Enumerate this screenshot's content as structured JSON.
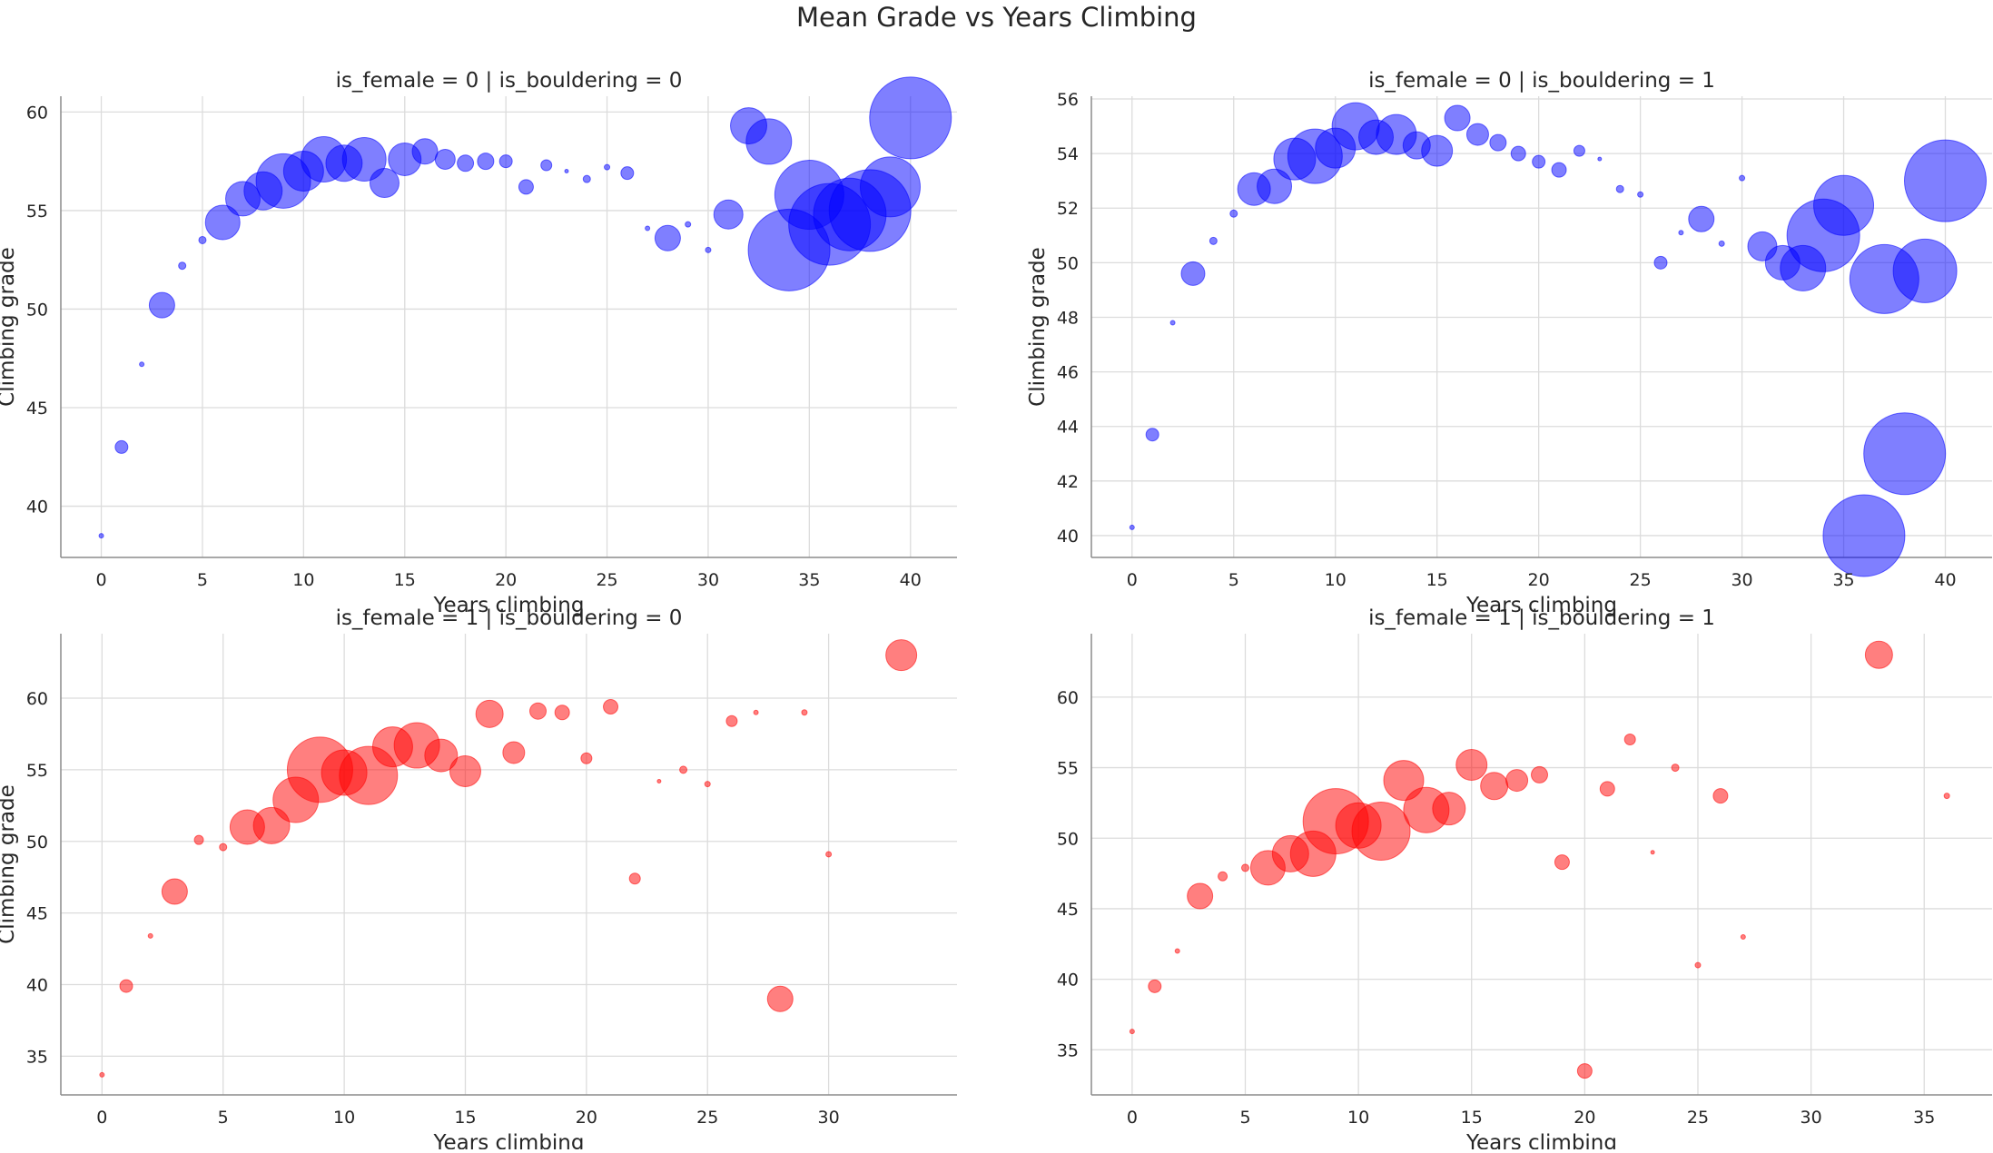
{
  "figure": {
    "title": "Mean Grade vs Years Climbing"
  },
  "chart_data": [
    {
      "type": "scatter",
      "title": "is_female = 0 | is_bouldering = 0",
      "xlabel": "Years climbing",
      "ylabel": "Climbing grade",
      "xlim": [
        -2,
        42.3
      ],
      "ylim": [
        37.4,
        60.8
      ],
      "xticks": [
        0,
        5,
        10,
        15,
        20,
        25,
        30,
        35,
        40
      ],
      "yticks": [
        40,
        45,
        50,
        55,
        60
      ],
      "color": "#0000ff",
      "points": [
        {
          "x": 0,
          "y": 38.5,
          "r": 2.5
        },
        {
          "x": 1,
          "y": 43.0,
          "r": 7
        },
        {
          "x": 2,
          "y": 47.2,
          "r": 2.5
        },
        {
          "x": 3,
          "y": 50.2,
          "r": 14
        },
        {
          "x": 4,
          "y": 52.2,
          "r": 4
        },
        {
          "x": 5,
          "y": 53.5,
          "r": 4
        },
        {
          "x": 6,
          "y": 54.4,
          "r": 19
        },
        {
          "x": 7,
          "y": 55.6,
          "r": 19
        },
        {
          "x": 8,
          "y": 56.0,
          "r": 21
        },
        {
          "x": 9,
          "y": 56.5,
          "r": 30
        },
        {
          "x": 10,
          "y": 57.0,
          "r": 22
        },
        {
          "x": 11,
          "y": 57.6,
          "r": 25
        },
        {
          "x": 12,
          "y": 57.4,
          "r": 20
        },
        {
          "x": 13,
          "y": 57.6,
          "r": 24
        },
        {
          "x": 14,
          "y": 56.4,
          "r": 16
        },
        {
          "x": 15,
          "y": 57.6,
          "r": 18
        },
        {
          "x": 16,
          "y": 58.0,
          "r": 14
        },
        {
          "x": 17,
          "y": 57.6,
          "r": 11
        },
        {
          "x": 18,
          "y": 57.4,
          "r": 9
        },
        {
          "x": 19,
          "y": 57.5,
          "r": 9
        },
        {
          "x": 20,
          "y": 57.5,
          "r": 7
        },
        {
          "x": 21,
          "y": 56.2,
          "r": 8
        },
        {
          "x": 22,
          "y": 57.3,
          "r": 6
        },
        {
          "x": 23,
          "y": 57.0,
          "r": 2
        },
        {
          "x": 24,
          "y": 56.6,
          "r": 4
        },
        {
          "x": 25,
          "y": 57.2,
          "r": 3
        },
        {
          "x": 26,
          "y": 56.9,
          "r": 7
        },
        {
          "x": 27,
          "y": 54.1,
          "r": 2.5
        },
        {
          "x": 28,
          "y": 53.6,
          "r": 14
        },
        {
          "x": 29,
          "y": 54.3,
          "r": 3
        },
        {
          "x": 30,
          "y": 53.0,
          "r": 3
        },
        {
          "x": 31,
          "y": 54.8,
          "r": 16
        },
        {
          "x": 32,
          "y": 59.3,
          "r": 20
        },
        {
          "x": 33,
          "y": 58.5,
          "r": 25
        },
        {
          "x": 34,
          "y": 53.0,
          "r": 45
        },
        {
          "x": 35,
          "y": 55.8,
          "r": 38
        },
        {
          "x": 36,
          "y": 54.3,
          "r": 45
        },
        {
          "x": 37,
          "y": 54.8,
          "r": 40
        },
        {
          "x": 38,
          "y": 55.0,
          "r": 45
        },
        {
          "x": 39,
          "y": 56.2,
          "r": 33
        },
        {
          "x": 40,
          "y": 59.7,
          "r": 45
        }
      ]
    },
    {
      "type": "scatter",
      "title": "is_female = 0 | is_bouldering = 1",
      "xlabel": "Years climbing",
      "ylabel": "Climbing grade",
      "xlim": [
        -2,
        42.3
      ],
      "ylim": [
        39.2,
        56.1
      ],
      "xticks": [
        0,
        5,
        10,
        15,
        20,
        25,
        30,
        35,
        40
      ],
      "yticks": [
        40,
        42,
        44,
        46,
        48,
        50,
        52,
        54,
        56
      ],
      "color": "#0000ff",
      "points": [
        {
          "x": 0,
          "y": 40.3,
          "r": 2.5
        },
        {
          "x": 1,
          "y": 43.7,
          "r": 7
        },
        {
          "x": 2,
          "y": 47.8,
          "r": 2.5
        },
        {
          "x": 3,
          "y": 49.6,
          "r": 13
        },
        {
          "x": 4,
          "y": 50.8,
          "r": 4
        },
        {
          "x": 5,
          "y": 51.8,
          "r": 4
        },
        {
          "x": 6,
          "y": 52.7,
          "r": 18
        },
        {
          "x": 7,
          "y": 52.8,
          "r": 19
        },
        {
          "x": 8,
          "y": 53.8,
          "r": 23
        },
        {
          "x": 9,
          "y": 53.9,
          "r": 30
        },
        {
          "x": 10,
          "y": 54.2,
          "r": 22
        },
        {
          "x": 11,
          "y": 55.0,
          "r": 26
        },
        {
          "x": 12,
          "y": 54.6,
          "r": 19
        },
        {
          "x": 13,
          "y": 54.7,
          "r": 22
        },
        {
          "x": 14,
          "y": 54.3,
          "r": 15
        },
        {
          "x": 15,
          "y": 54.1,
          "r": 17
        },
        {
          "x": 16,
          "y": 55.3,
          "r": 14
        },
        {
          "x": 17,
          "y": 54.7,
          "r": 12
        },
        {
          "x": 18,
          "y": 54.4,
          "r": 9
        },
        {
          "x": 19,
          "y": 54.0,
          "r": 8
        },
        {
          "x": 20,
          "y": 53.7,
          "r": 7
        },
        {
          "x": 21,
          "y": 53.4,
          "r": 8
        },
        {
          "x": 22,
          "y": 54.1,
          "r": 6
        },
        {
          "x": 23,
          "y": 53.8,
          "r": 2
        },
        {
          "x": 24,
          "y": 52.7,
          "r": 4
        },
        {
          "x": 25,
          "y": 52.5,
          "r": 3
        },
        {
          "x": 26,
          "y": 50.0,
          "r": 7
        },
        {
          "x": 27,
          "y": 51.1,
          "r": 2.5
        },
        {
          "x": 28,
          "y": 51.6,
          "r": 14
        },
        {
          "x": 29,
          "y": 50.7,
          "r": 3
        },
        {
          "x": 30,
          "y": 53.1,
          "r": 3
        },
        {
          "x": 31,
          "y": 50.6,
          "r": 16
        },
        {
          "x": 32,
          "y": 50.0,
          "r": 19
        },
        {
          "x": 33,
          "y": 49.8,
          "r": 25
        },
        {
          "x": 34,
          "y": 51.0,
          "r": 40
        },
        {
          "x": 35,
          "y": 52.1,
          "r": 33
        },
        {
          "x": 36,
          "y": 40.0,
          "r": 45
        },
        {
          "x": 37,
          "y": 49.4,
          "r": 38
        },
        {
          "x": 38,
          "y": 43.0,
          "r": 45
        },
        {
          "x": 39,
          "y": 49.7,
          "r": 35
        },
        {
          "x": 40,
          "y": 53.0,
          "r": 45
        }
      ]
    },
    {
      "type": "scatter",
      "title": "is_female = 1 | is_bouldering = 0",
      "xlabel": "Years climbing",
      "ylabel": "Climbing grade",
      "xlim": [
        -1.7,
        35.3
      ],
      "ylim": [
        32.3,
        64.5
      ],
      "xticks": [
        0,
        5,
        10,
        15,
        20,
        25,
        30
      ],
      "yticks": [
        35,
        40,
        45,
        50,
        55,
        60
      ],
      "color": "#ff0000",
      "points": [
        {
          "x": 0,
          "y": 33.7,
          "r": 2.5
        },
        {
          "x": 1,
          "y": 39.9,
          "r": 7
        },
        {
          "x": 2,
          "y": 43.4,
          "r": 2.5
        },
        {
          "x": 3,
          "y": 46.5,
          "r": 14
        },
        {
          "x": 4,
          "y": 50.1,
          "r": 5
        },
        {
          "x": 5,
          "y": 49.6,
          "r": 4
        },
        {
          "x": 6,
          "y": 51.0,
          "r": 19
        },
        {
          "x": 7,
          "y": 51.1,
          "r": 20
        },
        {
          "x": 8,
          "y": 52.9,
          "r": 25
        },
        {
          "x": 9,
          "y": 55.0,
          "r": 36
        },
        {
          "x": 10,
          "y": 54.8,
          "r": 25
        },
        {
          "x": 11,
          "y": 54.6,
          "r": 32
        },
        {
          "x": 12,
          "y": 56.6,
          "r": 22
        },
        {
          "x": 13,
          "y": 56.7,
          "r": 25
        },
        {
          "x": 14,
          "y": 56.0,
          "r": 18
        },
        {
          "x": 15,
          "y": 54.9,
          "r": 17
        },
        {
          "x": 16,
          "y": 58.9,
          "r": 15
        },
        {
          "x": 17,
          "y": 56.2,
          "r": 12
        },
        {
          "x": 18,
          "y": 59.1,
          "r": 9
        },
        {
          "x": 19,
          "y": 59.0,
          "r": 8
        },
        {
          "x": 20,
          "y": 55.8,
          "r": 6
        },
        {
          "x": 21,
          "y": 59.4,
          "r": 8
        },
        {
          "x": 22,
          "y": 47.4,
          "r": 6
        },
        {
          "x": 23,
          "y": 54.2,
          "r": 2
        },
        {
          "x": 24,
          "y": 55.0,
          "r": 4
        },
        {
          "x": 25,
          "y": 54.0,
          "r": 3
        },
        {
          "x": 26,
          "y": 58.4,
          "r": 6
        },
        {
          "x": 27,
          "y": 59.0,
          "r": 2.5
        },
        {
          "x": 28,
          "y": 39.0,
          "r": 14
        },
        {
          "x": 29,
          "y": 59.0,
          "r": 3
        },
        {
          "x": 30,
          "y": 49.1,
          "r": 3
        },
        {
          "x": 33,
          "y": 63.0,
          "r": 17
        }
      ]
    },
    {
      "type": "scatter",
      "title": "is_female = 1 | is_bouldering = 1",
      "xlabel": "Years climbing",
      "ylabel": "",
      "xlim": [
        -1.8,
        38.0
      ],
      "ylim": [
        31.8,
        64.5
      ],
      "xticks": [
        0,
        5,
        10,
        15,
        20,
        25,
        30,
        35
      ],
      "yticks": [
        35,
        40,
        45,
        50,
        55,
        60
      ],
      "color": "#ff0000",
      "points": [
        {
          "x": 0,
          "y": 36.3,
          "r": 2.5
        },
        {
          "x": 1,
          "y": 39.5,
          "r": 7
        },
        {
          "x": 2,
          "y": 42.0,
          "r": 2.5
        },
        {
          "x": 3,
          "y": 45.9,
          "r": 14
        },
        {
          "x": 4,
          "y": 47.3,
          "r": 5
        },
        {
          "x": 5,
          "y": 47.9,
          "r": 4
        },
        {
          "x": 6,
          "y": 47.9,
          "r": 19
        },
        {
          "x": 7,
          "y": 48.9,
          "r": 20
        },
        {
          "x": 8,
          "y": 48.9,
          "r": 25
        },
        {
          "x": 9,
          "y": 51.2,
          "r": 36
        },
        {
          "x": 10,
          "y": 50.9,
          "r": 25
        },
        {
          "x": 11,
          "y": 50.5,
          "r": 32
        },
        {
          "x": 12,
          "y": 54.1,
          "r": 22
        },
        {
          "x": 13,
          "y": 52.0,
          "r": 25
        },
        {
          "x": 14,
          "y": 52.1,
          "r": 18
        },
        {
          "x": 15,
          "y": 55.2,
          "r": 17
        },
        {
          "x": 16,
          "y": 53.7,
          "r": 15
        },
        {
          "x": 17,
          "y": 54.1,
          "r": 12
        },
        {
          "x": 18,
          "y": 54.5,
          "r": 9
        },
        {
          "x": 19,
          "y": 48.3,
          "r": 8
        },
        {
          "x": 20,
          "y": 33.5,
          "r": 8
        },
        {
          "x": 21,
          "y": 53.5,
          "r": 8
        },
        {
          "x": 22,
          "y": 57.0,
          "r": 6
        },
        {
          "x": 23,
          "y": 49.0,
          "r": 2
        },
        {
          "x": 24,
          "y": 55.0,
          "r": 4
        },
        {
          "x": 25,
          "y": 41.0,
          "r": 3
        },
        {
          "x": 26,
          "y": 53.0,
          "r": 8
        },
        {
          "x": 27,
          "y": 43.0,
          "r": 2.5
        },
        {
          "x": 33,
          "y": 63.0,
          "r": 15
        },
        {
          "x": 36,
          "y": 53.0,
          "r": 3
        }
      ]
    }
  ]
}
